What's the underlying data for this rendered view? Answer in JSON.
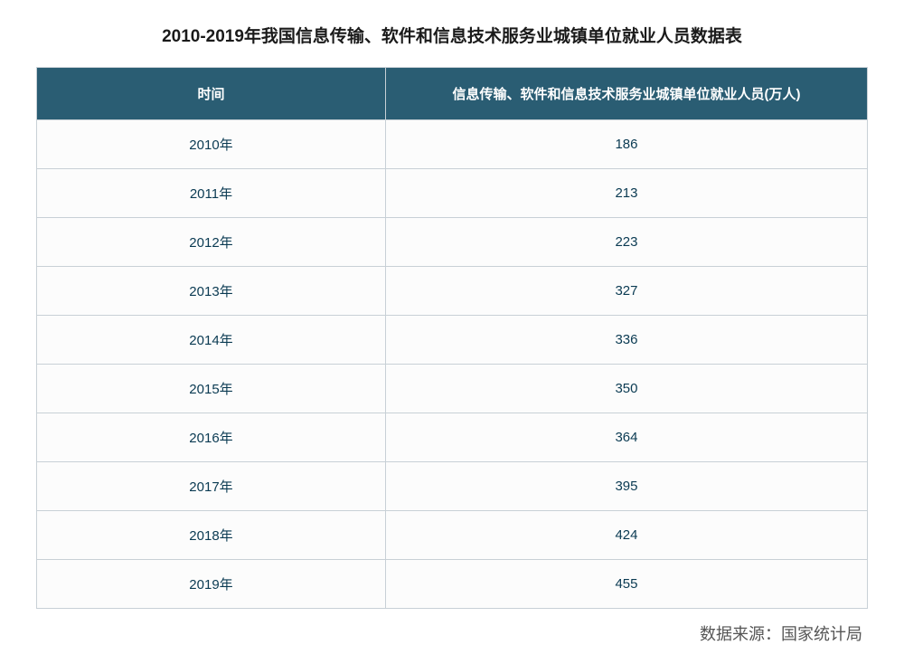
{
  "title": "2010-2019年我国信息传输、软件和信息技术服务业城镇单位就业人员数据表",
  "table": {
    "type": "table",
    "header_bg": "#2a5d73",
    "header_text_color": "#ffffff",
    "border_color": "#c8d0d6",
    "cell_bg": "#fcfcfc",
    "cell_text_color": "#0a3a52",
    "header_fontsize": 15,
    "cell_fontsize": 15,
    "columns": [
      {
        "label": "时间",
        "width_pct": 42,
        "align": "center"
      },
      {
        "label": "信息传输、软件和信息技术服务业城镇单位就业人员(万人)",
        "width_pct": 58,
        "align": "center"
      }
    ],
    "rows": [
      [
        "2010年",
        "186"
      ],
      [
        "2011年",
        "213"
      ],
      [
        "2012年",
        "223"
      ],
      [
        "2013年",
        "327"
      ],
      [
        "2014年",
        "336"
      ],
      [
        "2015年",
        "350"
      ],
      [
        "2016年",
        "364"
      ],
      [
        "2017年",
        "395"
      ],
      [
        "2018年",
        "424"
      ],
      [
        "2019年",
        "455"
      ]
    ]
  },
  "source": "数据来源：国家统计局"
}
